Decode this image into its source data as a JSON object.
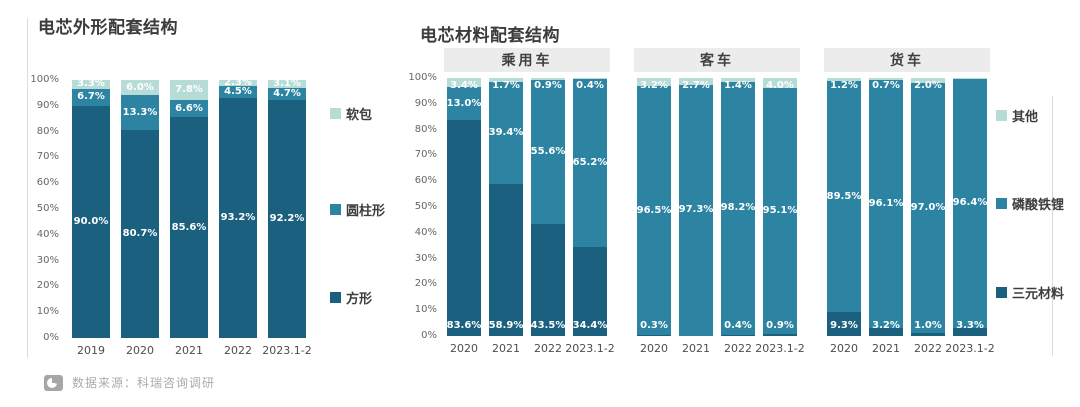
{
  "colors": {
    "dark": "#1b617f",
    "medium": "#2c84a2",
    "light": "#b7dbd6",
    "panel_header_bg": "#ececec",
    "title_text": "#3c3c3c",
    "axis_text": "#666666",
    "label_text": "#ffffff",
    "rule": "#dcdcdc",
    "footer_text": "#ababab"
  },
  "footer": {
    "source_label": "数据来源：科瑞咨询调研"
  },
  "chart_data": [
    {
      "type": "bar",
      "stacked": true,
      "title": "电芯外形配套结构",
      "categories": [
        "2019",
        "2020",
        "2021",
        "2022",
        "2023.1-2"
      ],
      "series": [
        {
          "name": "方形",
          "color_key": "dark",
          "values": [
            90.0,
            80.7,
            85.6,
            93.2,
            92.2
          ],
          "labels": [
            "90.0%",
            "80.7%",
            "85.6%",
            "93.2%",
            "92.2%"
          ]
        },
        {
          "name": "圆柱形",
          "color_key": "medium",
          "values": [
            6.7,
            13.3,
            6.6,
            4.5,
            4.7
          ],
          "labels": [
            "6.7%",
            "13.3%",
            "6.6%",
            "4.5%",
            "4.7%"
          ]
        },
        {
          "name": "软包",
          "color_key": "light",
          "values": [
            3.3,
            6.0,
            7.8,
            2.3,
            3.1
          ],
          "labels": [
            "3.3%",
            "6.0%",
            "7.8%",
            "2.3%",
            "3.1%"
          ]
        }
      ],
      "legend": [
        "软包",
        "圆柱形",
        "方形"
      ],
      "legend_position": "right",
      "ylim": [
        0,
        100
      ],
      "yticks": [
        "0%",
        "10%",
        "20%",
        "30%",
        "40%",
        "50%",
        "60%",
        "70%",
        "80%",
        "90%",
        "100%"
      ],
      "grid": false
    },
    {
      "type": "bar",
      "stacked": true,
      "title": "电芯材料配套结构",
      "categories": [
        "2020",
        "2021",
        "2022",
        "2023.1-2"
      ],
      "panels": [
        {
          "name": "乘用车",
          "series": [
            {
              "name": "三元材料",
              "color_key": "dark",
              "values": [
                83.6,
                58.9,
                43.5,
                34.4
              ],
              "labels": [
                "83.6%",
                "58.9%",
                "43.5%",
                "34.4%"
              ]
            },
            {
              "name": "磷酸铁锂",
              "color_key": "medium",
              "values": [
                13.0,
                39.4,
                55.6,
                65.2
              ],
              "labels": [
                "13.0%",
                "39.4%",
                "55.6%",
                "65.2%"
              ]
            },
            {
              "name": "其他",
              "color_key": "light",
              "values": [
                3.4,
                1.7,
                0.9,
                0.4
              ],
              "labels": [
                "3.4%",
                "1.7%",
                "0.9%",
                "0.4%"
              ]
            }
          ]
        },
        {
          "name": "客车",
          "series": [
            {
              "name": "三元材料",
              "color_key": "dark",
              "values": [
                0.3,
                0.0,
                0.4,
                0.9
              ],
              "labels": [
                "0.3%",
                "",
                "0.4%",
                "0.9%"
              ]
            },
            {
              "name": "磷酸铁锂",
              "color_key": "medium",
              "values": [
                96.5,
                97.3,
                98.2,
                95.1
              ],
              "labels": [
                "96.5%",
                "97.3%",
                "98.2%",
                "95.1%"
              ]
            },
            {
              "name": "其他",
              "color_key": "light",
              "values": [
                3.2,
                2.7,
                1.4,
                4.0
              ],
              "labels": [
                "3.2%",
                "2.7%",
                "1.4%",
                "4.0%"
              ]
            }
          ]
        },
        {
          "name": "货车",
          "series": [
            {
              "name": "三元材料",
              "color_key": "dark",
              "values": [
                9.3,
                3.2,
                1.0,
                3.3
              ],
              "labels": [
                "9.3%",
                "3.2%",
                "1.0%",
                "3.3%"
              ]
            },
            {
              "name": "磷酸铁锂",
              "color_key": "medium",
              "values": [
                89.5,
                96.1,
                97.0,
                96.4
              ],
              "labels": [
                "89.5%",
                "96.1%",
                "97.0%",
                "96.4%"
              ]
            },
            {
              "name": "其他",
              "color_key": "light",
              "values": [
                1.2,
                0.7,
                2.0,
                0.3
              ],
              "labels": [
                "1.2%",
                "0.7%",
                "2.0%",
                ""
              ]
            }
          ]
        }
      ],
      "legend": [
        "其他",
        "磷酸铁锂",
        "三元材料"
      ],
      "legend_position": "right",
      "ylim": [
        0,
        100
      ],
      "yticks": [
        "0%",
        "10%",
        "20%",
        "30%",
        "40%",
        "50%",
        "60%",
        "70%",
        "80%",
        "90%",
        "100%"
      ],
      "grid": false
    }
  ]
}
